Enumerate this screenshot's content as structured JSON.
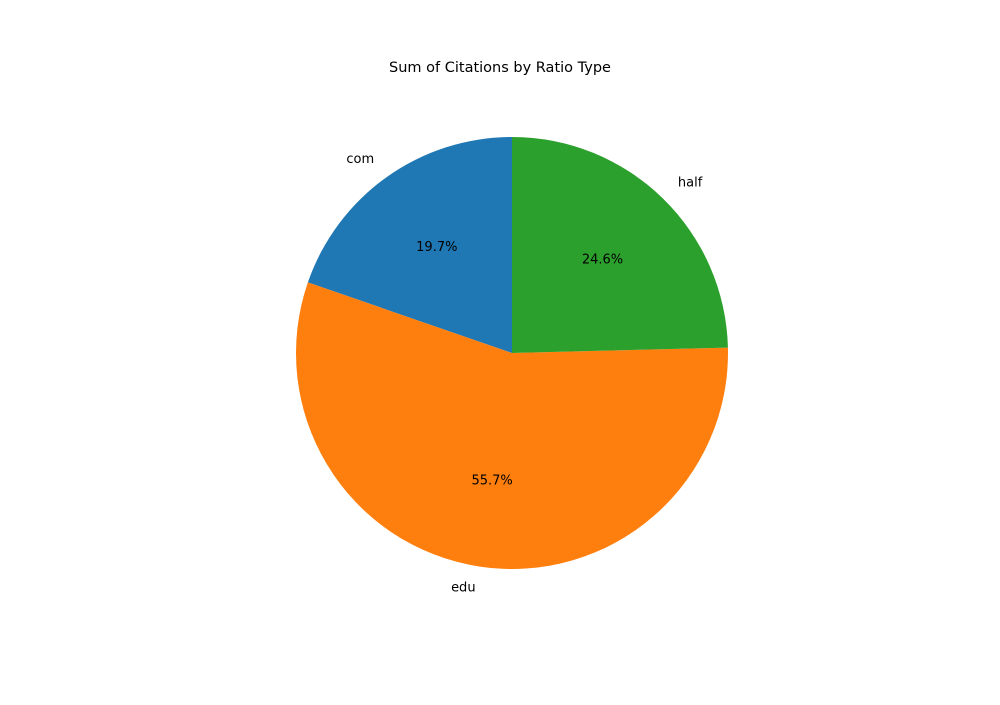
{
  "chart_data": {
    "type": "pie",
    "title": "Sum of Citations by Ratio Type",
    "categories": [
      "com",
      "edu",
      "half"
    ],
    "values": [
      19.7,
      55.7,
      24.6
    ],
    "value_labels": [
      "19.7%",
      "55.7%",
      "24.6%"
    ],
    "colors": [
      "#1f77b4",
      "#ff7f0e",
      "#2ca02c"
    ],
    "start_angle_deg": 90,
    "direction": "counterclockwise",
    "legend": "none"
  }
}
